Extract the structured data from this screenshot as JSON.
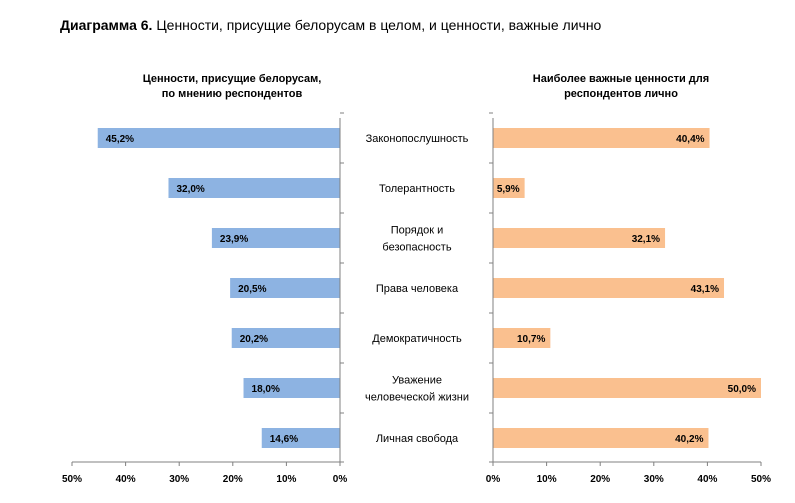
{
  "title": {
    "prefix": "Диаграмма 6.",
    "text": "Ценности, присущие белорусам в целом, и ценности, важные лично"
  },
  "colors": {
    "left_bar": "#8db3e2",
    "right_bar": "#fac08f",
    "axis": "#808080"
  },
  "chart_data": [
    {
      "type": "bar",
      "orientation": "horizontal",
      "direction": "right-to-left",
      "subtitle_lines": [
        "Ценности, присущие белорусам,",
        "по мнению респондентов"
      ],
      "categories": [
        [
          "Законопослушность"
        ],
        [
          "Толерантность"
        ],
        [
          "Порядок и",
          "безопасность"
        ],
        [
          "Права человека"
        ],
        [
          "Демократичность"
        ],
        [
          "Уважение",
          "человеческой жизни"
        ],
        [
          "Личная свобода"
        ]
      ],
      "values": [
        45.2,
        32.0,
        23.9,
        20.5,
        20.2,
        18.0,
        14.6
      ],
      "data_labels": [
        "45,2%",
        "32,0%",
        "23,9%",
        "20,5%",
        "20,2%",
        "18,0%",
        "14,6%"
      ],
      "xlim": [
        0,
        50
      ],
      "tick_labels": [
        "50%",
        "40%",
        "30%",
        "20%",
        "10%",
        "0%"
      ],
      "grid": false
    },
    {
      "type": "bar",
      "orientation": "horizontal",
      "direction": "left-to-right",
      "subtitle_lines": [
        "Наиболее важные ценности для",
        "респондентов лично"
      ],
      "categories": [
        [
          "Законопослушность"
        ],
        [
          "Толерантность"
        ],
        [
          "Порядок и",
          "безопасность"
        ],
        [
          "Права человека"
        ],
        [
          "Демократичность"
        ],
        [
          "Уважение",
          "человеческой жизни"
        ],
        [
          "Личная свобода"
        ]
      ],
      "values": [
        40.4,
        5.9,
        32.1,
        43.1,
        10.7,
        50.0,
        40.2
      ],
      "data_labels": [
        "40,4%",
        "5,9%",
        "32,1%",
        "43,1%",
        "10,7%",
        "50,0%",
        "40,2%"
      ],
      "xlim": [
        0,
        50
      ],
      "tick_labels": [
        "0%",
        "10%",
        "20%",
        "30%",
        "40%",
        "50%"
      ],
      "grid": false
    }
  ]
}
